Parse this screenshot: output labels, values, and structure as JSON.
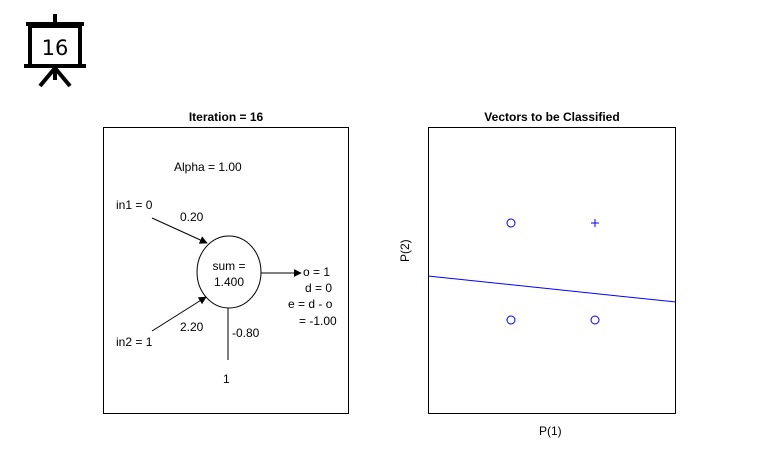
{
  "slide": {
    "number": "16",
    "icon": "presentation-board-icon"
  },
  "left_panel": {
    "title": "Iteration = 16",
    "alpha": "Alpha = 1.00",
    "in1": "in1 = 0",
    "in2": "in2 = 1",
    "w1": "0.20",
    "w2": "2.20",
    "bias_weight": "-0.80",
    "bias_input": "1",
    "sum_line1": "sum =",
    "sum_line2": "1.400",
    "out_o": "o = 1",
    "out_d": "d = 0",
    "out_e": "e = d - o",
    "out_e_val": "= -1.00"
  },
  "right_panel": {
    "chart_data": {
      "type": "scatter",
      "title": "Vectors to be Classified",
      "xlabel": "P(1)",
      "ylabel": "P(2)",
      "color": "#0000ff",
      "points": [
        {
          "x": 0,
          "y": 1,
          "marker": "o"
        },
        {
          "x": 1,
          "y": 1,
          "marker": "+"
        },
        {
          "x": 0,
          "y": 0,
          "marker": "o"
        },
        {
          "x": 1,
          "y": 0,
          "marker": "o"
        }
      ],
      "decision_boundary": {
        "slope": -0.091,
        "intercept": 0.364
      }
    }
  }
}
